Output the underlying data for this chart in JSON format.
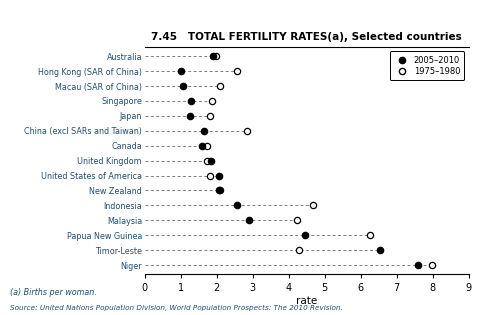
{
  "title": "7.45   TOTAL FERTILITY RATES(a), Selected countries",
  "xlabel": "rate",
  "xlim": [
    0,
    9
  ],
  "xticks": [
    0,
    1,
    2,
    3,
    4,
    5,
    6,
    7,
    8,
    9
  ],
  "footnote1": "(a) Births per woman.",
  "footnote2": "Source: United Nations Population Division, World Population Prospects: The 2010 Revision.",
  "countries": [
    "Australia",
    "Hong Kong (SAR of China)",
    "Macau (SAR of China)",
    "Singapore",
    "Japan",
    "China (excl SARs and Taiwan)",
    "Canada",
    "United Kingdom",
    "United States of America",
    "New Zealand",
    "Indonesia",
    "Malaysia",
    "Papua New Guinea",
    "Timor-Leste",
    "Niger"
  ],
  "values_2005_2010": [
    1.9,
    1.0,
    1.05,
    1.29,
    1.26,
    1.64,
    1.58,
    1.84,
    2.06,
    2.05,
    2.56,
    2.9,
    4.46,
    6.53,
    7.6
  ],
  "values_1975_1980": [
    1.98,
    2.57,
    2.1,
    1.87,
    1.81,
    2.84,
    1.74,
    1.72,
    1.8,
    2.1,
    4.68,
    4.22,
    6.27,
    4.29,
    7.99
  ],
  "legend_filled": "2005–2010",
  "legend_open": "1975–1980",
  "country_label_color": "#1f4e79",
  "title_color": "#000000",
  "dot_color_filled": "#000000",
  "dot_color_open": "#ffffff",
  "dashed_line_color": "#7f7f7f",
  "background_color": "#ffffff"
}
